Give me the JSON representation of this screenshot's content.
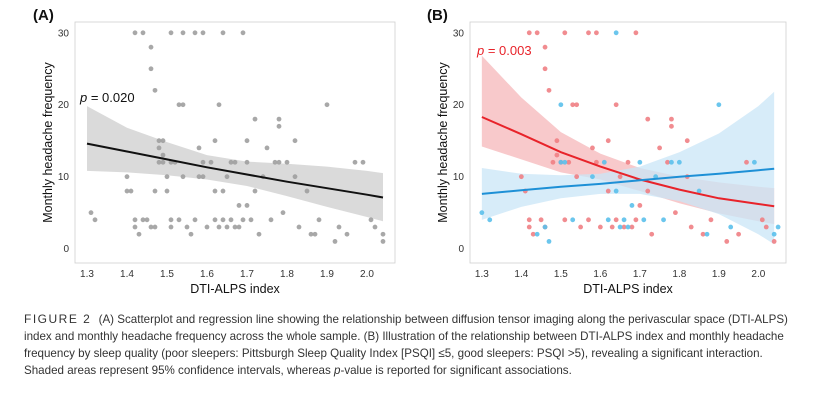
{
  "chart_data": [
    {
      "panel": "(A)",
      "type": "scatter",
      "xlabel": "DTI-ALPS index",
      "ylabel": "Monthly headache frequency",
      "xticks": [
        "1.3",
        "1.4",
        "1.5",
        "1.6",
        "1.7",
        "1.8",
        "1.9",
        "2.0"
      ],
      "yticks": [
        "0",
        "10",
        "20",
        "30"
      ],
      "xlim": [
        1.27,
        2.07
      ],
      "ylim": [
        -2,
        31.5
      ],
      "grid": false,
      "annotation": {
        "prefix": "p",
        "text": " = 0.020",
        "color": "#111111"
      },
      "series": [
        {
          "color": "#9e9e9e",
          "points": [
            [
              1.31,
              5
            ],
            [
              1.32,
              4
            ],
            [
              1.4,
              10
            ],
            [
              1.4,
              8
            ],
            [
              1.41,
              8
            ],
            [
              1.42,
              4
            ],
            [
              1.42,
              3
            ],
            [
              1.43,
              2
            ],
            [
              1.44,
              4
            ],
            [
              1.45,
              4
            ],
            [
              1.46,
              3
            ],
            [
              1.47,
              3
            ],
            [
              1.47,
              8
            ],
            [
              1.48,
              12
            ],
            [
              1.48,
              14
            ],
            [
              1.49,
              15
            ],
            [
              1.49,
              12
            ],
            [
              1.5,
              8
            ],
            [
              1.5,
              10
            ],
            [
              1.51,
              4
            ],
            [
              1.51,
              3
            ],
            [
              1.52,
              12
            ],
            [
              1.53,
              4
            ],
            [
              1.54,
              10
            ],
            [
              1.55,
              3
            ],
            [
              1.56,
              2
            ],
            [
              1.57,
              4
            ],
            [
              1.58,
              10
            ],
            [
              1.58,
              14
            ],
            [
              1.59,
              10
            ],
            [
              1.6,
              3
            ],
            [
              1.61,
              12
            ],
            [
              1.62,
              15
            ],
            [
              1.62,
              8
            ],
            [
              1.62,
              4
            ],
            [
              1.63,
              3
            ],
            [
              1.64,
              4
            ],
            [
              1.64,
              8
            ],
            [
              1.65,
              3
            ],
            [
              1.65,
              10
            ],
            [
              1.66,
              4
            ],
            [
              1.66,
              12
            ],
            [
              1.67,
              3
            ],
            [
              1.67,
              12
            ],
            [
              1.68,
              3
            ],
            [
              1.68,
              6
            ],
            [
              1.69,
              4
            ],
            [
              1.7,
              12
            ],
            [
              1.7,
              6
            ],
            [
              1.71,
              4
            ],
            [
              1.72,
              8
            ],
            [
              1.73,
              2
            ],
            [
              1.74,
              10
            ],
            [
              1.75,
              14
            ],
            [
              1.76,
              4
            ],
            [
              1.77,
              12
            ],
            [
              1.78,
              12
            ],
            [
              1.79,
              5
            ],
            [
              1.8,
              12
            ],
            [
              1.82,
              10
            ],
            [
              1.83,
              3
            ],
            [
              1.85,
              8
            ],
            [
              1.86,
              2
            ],
            [
              1.87,
              2
            ],
            [
              1.88,
              4
            ],
            [
              1.92,
              1
            ],
            [
              1.93,
              3
            ],
            [
              1.95,
              2
            ],
            [
              1.97,
              12
            ],
            [
              1.99,
              12
            ],
            [
              2.01,
              4
            ],
            [
              2.02,
              3
            ],
            [
              2.04,
              2
            ],
            [
              2.04,
              1
            ],
            [
              1.42,
              30
            ],
            [
              1.44,
              30
            ],
            [
              1.51,
              30
            ],
            [
              1.54,
              30
            ],
            [
              1.57,
              30
            ],
            [
              1.59,
              30
            ],
            [
              1.64,
              30
            ],
            [
              1.69,
              30
            ],
            [
              1.46,
              28
            ],
            [
              1.46,
              25
            ],
            [
              1.47,
              22
            ],
            [
              1.53,
              20
            ],
            [
              1.54,
              20
            ],
            [
              1.63,
              20
            ],
            [
              1.9,
              20
            ],
            [
              1.72,
              18
            ],
            [
              1.78,
              17
            ],
            [
              1.48,
              15
            ],
            [
              1.7,
              15
            ],
            [
              1.82,
              15
            ],
            [
              1.59,
              12
            ],
            [
              1.49,
              13
            ],
            [
              1.51,
              12
            ],
            [
              1.78,
              18
            ]
          ]
        }
      ],
      "fit": {
        "color": "#111111",
        "ci_color": "#d4d4d4",
        "x": [
          1.3,
          1.4,
          1.5,
          1.6,
          1.7,
          1.8,
          1.9,
          2.0,
          2.04
        ],
        "y": [
          14.6,
          13.5,
          12.4,
          11.3,
          10.3,
          9.3,
          8.4,
          7.5,
          7.1
        ],
        "ci_upper": [
          19.8,
          16.8,
          14.8,
          13.0,
          12.1,
          11.8,
          11.4,
          10.8,
          10.5
        ],
        "ci_lower": [
          10.8,
          10.6,
          10.2,
          9.6,
          8.7,
          7.3,
          5.8,
          4.4,
          3.8
        ]
      }
    },
    {
      "panel": "(B)",
      "type": "scatter",
      "xlabel": "DTI-ALPS index",
      "ylabel": "Monthly headache frequency",
      "xticks": [
        "1.3",
        "1.4",
        "1.5",
        "1.6",
        "1.7",
        "1.8",
        "1.9",
        "2.0"
      ],
      "yticks": [
        "0",
        "10",
        "20",
        "30"
      ],
      "xlim": [
        1.27,
        2.07
      ],
      "ylim": [
        -2,
        31.5
      ],
      "grid": false,
      "annotation": {
        "prefix": "p",
        "text": " = 0.003",
        "color": "#e8232a"
      },
      "series": [
        {
          "color": "#f07f84",
          "points": [
            [
              1.4,
              10
            ],
            [
              1.41,
              8
            ],
            [
              1.42,
              4
            ],
            [
              1.42,
              3
            ],
            [
              1.43,
              2
            ],
            [
              1.45,
              4
            ],
            [
              1.46,
              3
            ],
            [
              1.48,
              12
            ],
            [
              1.49,
              15
            ],
            [
              1.5,
              12
            ],
            [
              1.51,
              4
            ],
            [
              1.52,
              12
            ],
            [
              1.54,
              10
            ],
            [
              1.55,
              3
            ],
            [
              1.57,
              4
            ],
            [
              1.58,
              14
            ],
            [
              1.6,
              3
            ],
            [
              1.62,
              15
            ],
            [
              1.62,
              8
            ],
            [
              1.63,
              3
            ],
            [
              1.64,
              4
            ],
            [
              1.65,
              10
            ],
            [
              1.66,
              3
            ],
            [
              1.67,
              12
            ],
            [
              1.68,
              3
            ],
            [
              1.69,
              4
            ],
            [
              1.7,
              6
            ],
            [
              1.72,
              8
            ],
            [
              1.73,
              2
            ],
            [
              1.75,
              14
            ],
            [
              1.77,
              12
            ],
            [
              1.79,
              5
            ],
            [
              1.82,
              10
            ],
            [
              1.83,
              3
            ],
            [
              1.86,
              2
            ],
            [
              1.88,
              4
            ],
            [
              1.92,
              1
            ],
            [
              1.95,
              2
            ],
            [
              1.97,
              12
            ],
            [
              2.01,
              4
            ],
            [
              2.02,
              3
            ],
            [
              2.04,
              1
            ],
            [
              1.42,
              30
            ],
            [
              1.44,
              30
            ],
            [
              1.51,
              30
            ],
            [
              1.57,
              30
            ],
            [
              1.59,
              30
            ],
            [
              1.69,
              30
            ],
            [
              1.46,
              28
            ],
            [
              1.46,
              25
            ],
            [
              1.47,
              22
            ],
            [
              1.53,
              20
            ],
            [
              1.54,
              20
            ],
            [
              1.72,
              18
            ],
            [
              1.78,
              17
            ],
            [
              1.82,
              15
            ],
            [
              1.59,
              12
            ],
            [
              1.49,
              13
            ],
            [
              1.64,
              20
            ],
            [
              1.78,
              18
            ]
          ]
        },
        {
          "color": "#5bc0eb",
          "points": [
            [
              1.3,
              5
            ],
            [
              1.32,
              4
            ],
            [
              1.44,
              2
            ],
            [
              1.46,
              3
            ],
            [
              1.47,
              1
            ],
            [
              1.5,
              12
            ],
            [
              1.5,
              20
            ],
            [
              1.51,
              12
            ],
            [
              1.53,
              4
            ],
            [
              1.58,
              10
            ],
            [
              1.61,
              12
            ],
            [
              1.62,
              4
            ],
            [
              1.64,
              8
            ],
            [
              1.65,
              3
            ],
            [
              1.66,
              4
            ],
            [
              1.67,
              3
            ],
            [
              1.68,
              6
            ],
            [
              1.7,
              12
            ],
            [
              1.71,
              4
            ],
            [
              1.74,
              10
            ],
            [
              1.76,
              4
            ],
            [
              1.78,
              12
            ],
            [
              1.8,
              12
            ],
            [
              1.85,
              8
            ],
            [
              1.87,
              2
            ],
            [
              1.9,
              20
            ],
            [
              1.93,
              3
            ],
            [
              1.99,
              12
            ],
            [
              2.04,
              2
            ],
            [
              2.05,
              3
            ],
            [
              1.64,
              30
            ]
          ]
        }
      ],
      "fits": [
        {
          "color": "#e8232a",
          "ci_color": "#f6b7ba",
          "x": [
            1.3,
            1.4,
            1.5,
            1.6,
            1.7,
            1.8,
            1.9,
            2.0,
            2.04
          ],
          "y": [
            18.3,
            15.9,
            13.4,
            11.4,
            9.6,
            8.2,
            7.0,
            6.2,
            5.9
          ],
          "ci_upper": [
            26.8,
            21.0,
            16.2,
            13.2,
            11.2,
            10.0,
            9.2,
            8.6,
            8.4
          ],
          "ci_lower": [
            14.2,
            12.4,
            10.6,
            9.6,
            8.0,
            6.3,
            4.9,
            3.8,
            3.4
          ]
        },
        {
          "color": "#1e90d6",
          "ci_color": "#c9e6f7",
          "x": [
            1.3,
            1.4,
            1.5,
            1.6,
            1.7,
            1.8,
            1.9,
            2.0,
            2.04
          ],
          "y": [
            7.6,
            8.1,
            8.6,
            9.0,
            9.5,
            10.0,
            10.4,
            10.9,
            11.1
          ],
          "ci_upper": [
            11.2,
            10.4,
            10.2,
            10.4,
            11.4,
            13.4,
            16.0,
            19.8,
            21.8
          ],
          "ci_lower": [
            4.0,
            5.8,
            7.0,
            7.6,
            7.6,
            6.6,
            4.8,
            2.0,
            0.6
          ]
        }
      ]
    }
  ],
  "caption": {
    "label": "FIGURE 2",
    "part1": "(A) Scatterplot and regression line showing the relationship between diffusion tensor imaging along the perivascular space (DTI-ALPS) index and monthly headache frequency across the whole sample. (B) Illustration of the relationship between DTI-ALPS index and monthly headache frequency by sleep quality (poor sleepers: Pittsburgh Sleep Quality Index [PSQI] ≤5, good sleepers: PSQI >5), revealing a significant interaction. Shaded areas represent 95% confidence intervals, whereas ",
    "italic": "p",
    "part2": "-value is reported for significant associations."
  }
}
